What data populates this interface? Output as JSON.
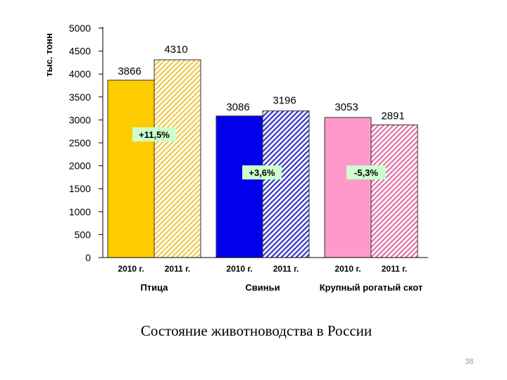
{
  "caption": "Состояние животноводства в России",
  "page_number": "38",
  "chart_data": {
    "type": "bar",
    "ylabel": "тыс. тонн",
    "ylim": [
      0,
      5000
    ],
    "yticks": [
      0,
      500,
      1000,
      1500,
      2000,
      2500,
      3000,
      3500,
      4000,
      4500,
      5000
    ],
    "groups": [
      {
        "name": "Птица",
        "change": "+11,5%",
        "bars": [
          {
            "year": "2010 г.",
            "value": 3866,
            "color": "#FFCC00",
            "hatched": false
          },
          {
            "year": "2011 г.",
            "value": 4310,
            "color": "#F0C84A",
            "hatched": true
          }
        ]
      },
      {
        "name": "Свиньи",
        "change": "+3,6%",
        "bars": [
          {
            "year": "2010 г.",
            "value": 3086,
            "color": "#0000EE",
            "hatched": false
          },
          {
            "year": "2011 г.",
            "value": 3196,
            "color": "#3333CC",
            "hatched": true
          }
        ]
      },
      {
        "name": "Крупный рогатый скот",
        "change": "-5,3%",
        "bars": [
          {
            "year": "2010 г.",
            "value": 3053,
            "color": "#FF99CC",
            "hatched": false
          },
          {
            "year": "2011 г.",
            "value": 2891,
            "color": "#E36FA6",
            "hatched": true
          }
        ]
      }
    ],
    "change_label_bg": "#CCFFCC",
    "grid": false
  }
}
